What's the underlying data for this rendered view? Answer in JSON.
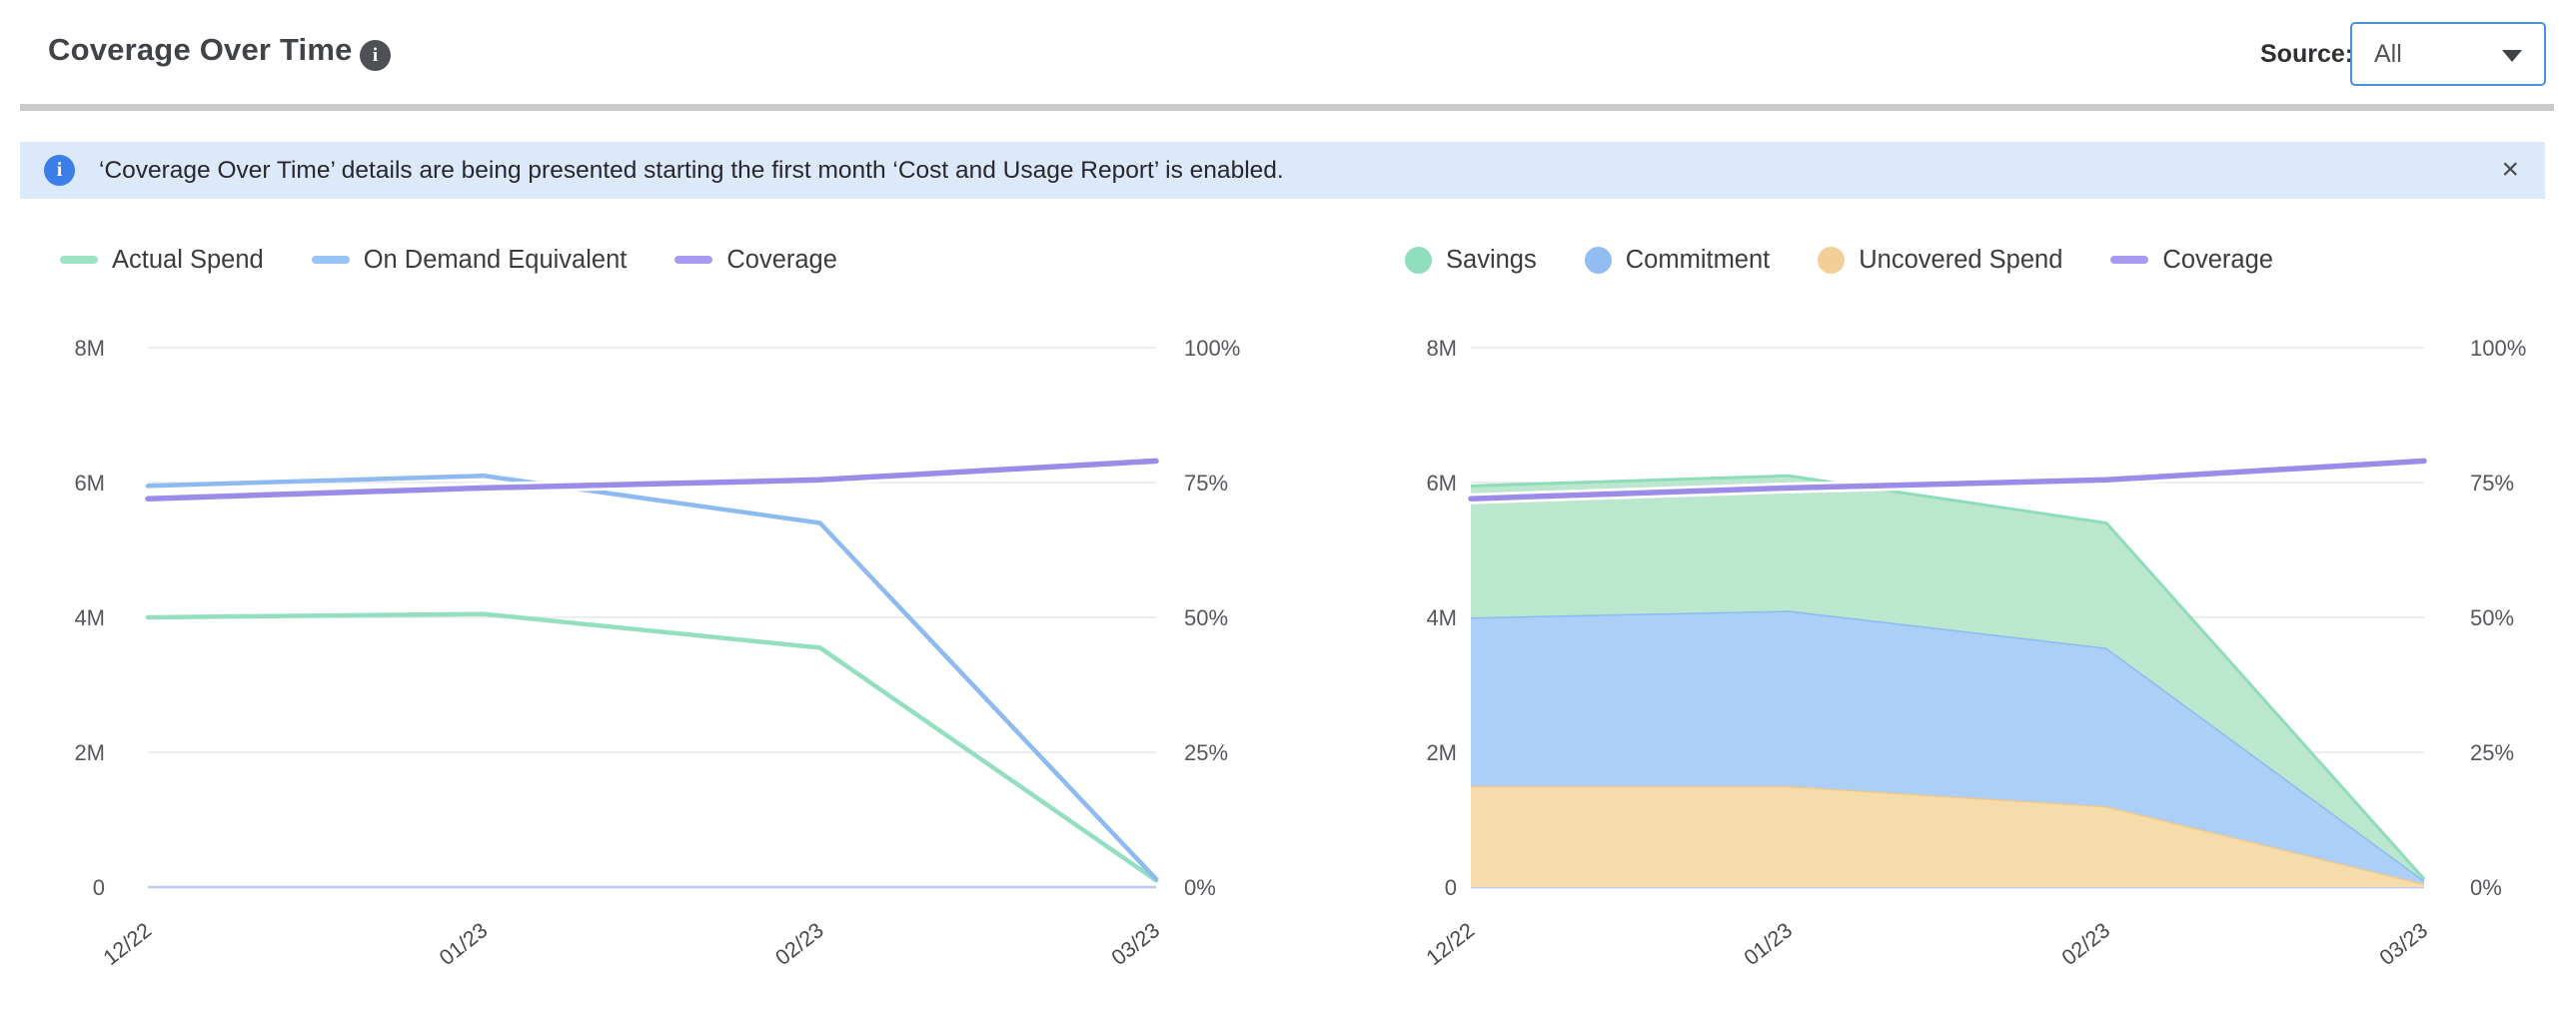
{
  "header": {
    "title": "Coverage Over Time",
    "info_icon": "i",
    "source_label": "Source:",
    "source_value": "All"
  },
  "banner": {
    "info_icon": "i",
    "text": "‘Coverage Over Time’ details are being presented starting the first month ‘Cost and Usage Report’ is enabled.",
    "close_icon": "×"
  },
  "colors": {
    "green_line": "#9fe3c6",
    "green_fill": "#bbe7ce",
    "green_edge": "#8edcba",
    "blue_line": "#8cbaf1",
    "blue_fill": "#abcff7",
    "orange_fill": "#f5dcaa",
    "orange_edge": "#efc88e",
    "purple_line": "#9c8ce9",
    "banner_bg": "#dce9fb",
    "banner_icon_blue": "#3b7de9",
    "select_border_blue": "#4a90e2",
    "grid": "#e7e7ea",
    "axis_zero_line": "#bdc9f1"
  },
  "chart_data": [
    {
      "type": "line",
      "x": [
        "12/22",
        "01/23",
        "02/23",
        "03/23"
      ],
      "y_left_axis": {
        "label_unit": "millions",
        "ticks": [
          "0",
          "2M",
          "4M",
          "6M",
          "8M"
        ],
        "range_millions": [
          0,
          8
        ]
      },
      "y_right_axis": {
        "label_unit": "percent",
        "ticks": [
          "0%",
          "25%",
          "50%",
          "75%",
          "100%"
        ],
        "range_percent": [
          0,
          100
        ]
      },
      "grid": true,
      "legend_position": "top-left",
      "legend": [
        {
          "label": "Actual Spend",
          "marker": "line",
          "color": "#9fe3c6"
        },
        {
          "label": "On Demand Equivalent",
          "marker": "line",
          "color": "#96c4f5"
        },
        {
          "label": "Coverage",
          "marker": "line",
          "color": "#a79af0"
        }
      ],
      "series": [
        {
          "name": "Actual Spend",
          "kind": "line",
          "yaxis": "M",
          "color": "#93dfc0",
          "values_millions": [
            4.0,
            4.05,
            3.55,
            0.1
          ]
        },
        {
          "name": "On Demand Equivalent",
          "kind": "line",
          "yaxis": "M",
          "color": "#8cbaf1",
          "values_millions": [
            5.95,
            6.1,
            5.4,
            0.12
          ]
        },
        {
          "name": "Coverage",
          "kind": "line",
          "yaxis": "%",
          "halo": true,
          "color": "#9c8ce9",
          "values_percent": [
            72,
            74,
            75.5,
            79
          ]
        }
      ]
    },
    {
      "type": "area",
      "stacked": true,
      "x": [
        "12/22",
        "01/23",
        "02/23",
        "03/23"
      ],
      "y_left_axis": {
        "label_unit": "millions",
        "ticks": [
          "0",
          "2M",
          "4M",
          "6M",
          "8M"
        ],
        "range_millions": [
          0,
          8
        ]
      },
      "y_right_axis": {
        "label_unit": "percent",
        "ticks": [
          "0%",
          "25%",
          "50%",
          "75%",
          "100%"
        ],
        "range_percent": [
          0,
          100
        ]
      },
      "grid": true,
      "legend_position": "top-left",
      "legend": [
        {
          "label": "Savings",
          "marker": "dot",
          "color": "#8fdebd"
        },
        {
          "label": "Commitment",
          "marker": "dot",
          "color": "#92bdf3"
        },
        {
          "label": "Uncovered Spend",
          "marker": "dot",
          "color": "#f2cf97"
        },
        {
          "label": "Coverage",
          "marker": "line",
          "color": "#a79af0"
        }
      ],
      "series": [
        {
          "name": "Uncovered Spend",
          "kind": "area",
          "yaxis": "M",
          "color": "#efc88e",
          "fill": "#f5dcaa",
          "values_millions": [
            1.5,
            1.5,
            1.2,
            0.05
          ]
        },
        {
          "name": "Commitment",
          "kind": "area",
          "yaxis": "M",
          "color": "#8cbaf1",
          "fill": "#abcff7",
          "values_millions": [
            2.5,
            2.6,
            2.35,
            0.05
          ]
        },
        {
          "name": "Savings",
          "kind": "area",
          "yaxis": "M",
          "color": "#8edcba",
          "fill": "#bbe7ce",
          "values_millions": [
            1.95,
            2.0,
            1.85,
            0.02
          ]
        },
        {
          "name": "Coverage",
          "kind": "line",
          "yaxis": "%",
          "halo": true,
          "color": "#9c8ce9",
          "values_percent": [
            72,
            74,
            75.5,
            79
          ]
        }
      ]
    }
  ]
}
